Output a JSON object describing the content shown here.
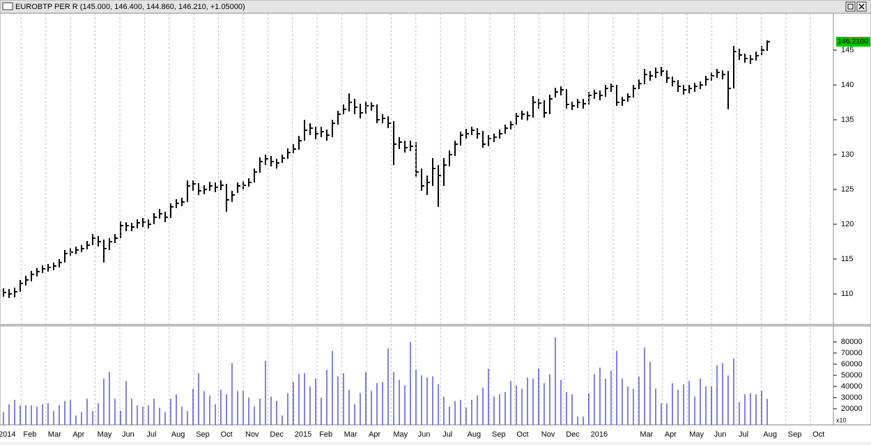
{
  "window": {
    "title": "EUROBTP PER R (145.000, 146.400, 144.860, 146.210, +1.05000)"
  },
  "chart_data": [
    {
      "type": "ohlc",
      "color": "#000000",
      "high": [
        110.8,
        110.7,
        110.9,
        112,
        112.6,
        113.3,
        113.7,
        114.1,
        114.3,
        114.5,
        115,
        116.3,
        116.6,
        116.8,
        117,
        117.6,
        118.6,
        118.3,
        117.8,
        118,
        118.6,
        120.4,
        120.3,
        120.2,
        120.7,
        120.9,
        120.7,
        121.6,
        122.2,
        121.8,
        123,
        123.6,
        123.8,
        126.3,
        126.3,
        125.9,
        125.6,
        126.1,
        126,
        126.3,
        125.8,
        124.8,
        126,
        126.2,
        126.6,
        128,
        129.6,
        130,
        129.8,
        129.4,
        130,
        130.9,
        131.5,
        132.7,
        135,
        134.5,
        134,
        134,
        133.6,
        135,
        136.3,
        137.2,
        138.8,
        138,
        137.3,
        137.6,
        137.5,
        137.2,
        135.8,
        135.5,
        134.8,
        132.5,
        132,
        132,
        131.8,
        128,
        127,
        129.5,
        128.5,
        129.5,
        130.6,
        132,
        133.3,
        133.7,
        134,
        133.8,
        133.4,
        132.8,
        133,
        133.6,
        134.3,
        134.8,
        136,
        136.3,
        136.2,
        138.4,
        138,
        137.8,
        138.6,
        139.6,
        139.8,
        139.4,
        137.6,
        138,
        138,
        139,
        139.3,
        139.2,
        140,
        140.2,
        140,
        138.3,
        138.8,
        140,
        140.8,
        142.3,
        142,
        142.5,
        142.6,
        142.1,
        141.2,
        140.7,
        140,
        140,
        140.3,
        140.5,
        141.3,
        141.8,
        142.3,
        142.1,
        142,
        145.6,
        145.2,
        144.5,
        144.3,
        144.8,
        145.6,
        146.4
      ],
      "low": [
        109.6,
        109.4,
        109.5,
        110.3,
        111.2,
        111.8,
        112.5,
        113,
        113.2,
        113.4,
        113.8,
        114.5,
        115.5,
        115.7,
        116,
        116.4,
        117,
        116.8,
        114.5,
        116.3,
        117.3,
        118,
        119,
        119,
        119.4,
        119.6,
        119.4,
        120,
        120.8,
        120.3,
        120.9,
        122.3,
        122.6,
        123.2,
        124.8,
        124.2,
        124.3,
        124.8,
        124.6,
        124.9,
        121.8,
        123.2,
        124.5,
        125,
        125.4,
        126,
        127.4,
        128.5,
        128.3,
        128,
        128.8,
        129.4,
        130.2,
        130.7,
        132,
        132.8,
        132.2,
        132.5,
        132,
        132.5,
        134.3,
        135.8,
        136.2,
        135.8,
        135.2,
        135.9,
        136.3,
        134.5,
        134.5,
        133.8,
        128.5,
        130.8,
        130.3,
        130.5,
        126.8,
        124.8,
        124.2,
        125.5,
        122.5,
        125.5,
        128.3,
        129.8,
        131.3,
        132.3,
        132.8,
        132.3,
        131,
        131.2,
        131.8,
        132.3,
        133,
        133.6,
        134.3,
        135,
        134.9,
        135.3,
        136.6,
        135.3,
        135.8,
        138.2,
        138.5,
        136.6,
        136.4,
        136.7,
        136.6,
        137.2,
        138,
        137.8,
        138.3,
        139,
        137,
        137,
        137.6,
        138.2,
        139.4,
        140.1,
        140.6,
        141,
        141.3,
        140.3,
        139.8,
        139,
        138.6,
        138.8,
        139,
        139.4,
        139.9,
        140.6,
        141,
        140.8,
        136.5,
        139.5,
        143.6,
        143.2,
        143,
        143.5,
        144.3,
        144.9
      ],
      "close": [
        110.2,
        110,
        110.3,
        111.5,
        112,
        112.8,
        113.2,
        113.6,
        113.8,
        114,
        114.5,
        115.8,
        116,
        116.3,
        116.5,
        117,
        118,
        117.5,
        116.5,
        117.5,
        118,
        119.8,
        119.8,
        119.6,
        120.2,
        120.3,
        120,
        121,
        121.5,
        121,
        122.5,
        123,
        123.2,
        125.5,
        125.8,
        124.8,
        125,
        125.5,
        125.3,
        125.6,
        123.5,
        124.2,
        125.5,
        125.6,
        126,
        127.5,
        129,
        129.4,
        129,
        128.8,
        129.5,
        130.3,
        130.8,
        132,
        133.5,
        133.8,
        133,
        133.3,
        132.8,
        134.5,
        135.8,
        136.5,
        137.5,
        136.8,
        136,
        137,
        137,
        135,
        135.2,
        134.5,
        131.5,
        131.8,
        131,
        131.2,
        127.5,
        125.5,
        126,
        128,
        127,
        128.5,
        130,
        131.5,
        132.8,
        133,
        133.5,
        133,
        131.5,
        132.3,
        132.5,
        133,
        133.8,
        134.3,
        135.5,
        135.8,
        135.6,
        137.5,
        137.4,
        136,
        138,
        139,
        139.3,
        137.2,
        137,
        137.5,
        137.3,
        138.5,
        138.8,
        138.5,
        139.5,
        139.8,
        137.5,
        137.8,
        138.3,
        139.5,
        140.2,
        141.5,
        141.3,
        141.8,
        142,
        141,
        140.5,
        139.8,
        139.3,
        139.5,
        139.8,
        140,
        140.8,
        141.3,
        141.8,
        141.5,
        139.5,
        144.8,
        144.3,
        143.8,
        143.7,
        144.2,
        145,
        146.21
      ],
      "ylim": [
        105.7,
        150.3
      ],
      "yticks": [
        110,
        115,
        120,
        125,
        130,
        135,
        140,
        145
      ],
      "last_price": {
        "value": 146.21,
        "label": "146.2100"
      },
      "last_price_color": "#00c000"
    },
    {
      "type": "bar",
      "color": "#0000c0",
      "values": [
        17000,
        24000,
        28000,
        23000,
        23000,
        23000,
        22000,
        24000,
        25000,
        18000,
        23000,
        27000,
        28000,
        14000,
        17000,
        29000,
        18000,
        25000,
        47000,
        53000,
        29000,
        18000,
        45000,
        29000,
        23000,
        22000,
        23000,
        29000,
        21000,
        17000,
        29000,
        33000,
        22000,
        18000,
        38000,
        52000,
        36000,
        32000,
        24000,
        37000,
        33000,
        61000,
        36000,
        36000,
        30000,
        22000,
        29000,
        63000,
        31000,
        27000,
        14000,
        34000,
        44000,
        51000,
        52000,
        40000,
        47000,
        30000,
        55000,
        72000,
        49000,
        52000,
        37000,
        24000,
        34000,
        53000,
        36000,
        43000,
        44000,
        74000,
        53000,
        46000,
        41000,
        80000,
        55000,
        50000,
        48000,
        49000,
        42000,
        31000,
        22000,
        27000,
        28000,
        21000,
        28000,
        32000,
        39000,
        56000,
        31000,
        33000,
        35000,
        45000,
        41000,
        38000,
        48000,
        47000,
        56000,
        43000,
        51000,
        84000,
        46000,
        35000,
        33000,
        13000,
        13000,
        34000,
        51000,
        57000,
        47000,
        54000,
        72000,
        47000,
        40000,
        38000,
        49000,
        75000,
        62000,
        38000,
        25000,
        25000,
        43000,
        37000,
        42000,
        45000,
        31000,
        47000,
        40000,
        40000,
        59000,
        61000,
        50000,
        65000,
        26000,
        33000,
        34000,
        33000,
        36000,
        29000
      ],
      "ylim": [
        5600,
        93100
      ],
      "yticks": [
        20000,
        30000,
        40000,
        50000,
        60000,
        70000,
        80000
      ],
      "axis_note": "x10",
      "grid": true,
      "x_labels": [
        "2014",
        "Feb",
        "Mar",
        "Apr",
        "May",
        "Jun",
        "Jul",
        "Aug",
        "Sep",
        "Oct",
        "Nov",
        "Dec",
        "2015",
        "Feb",
        "Mar",
        "Apr",
        "May",
        "Jun",
        "Jul",
        "Aug",
        "Sep",
        "Oct",
        "Nov",
        "Dec",
        "2016",
        null,
        "Mar",
        "Apr",
        "May",
        "Jun",
        "Jul",
        "Aug",
        "Sep",
        "Oct"
      ]
    }
  ]
}
